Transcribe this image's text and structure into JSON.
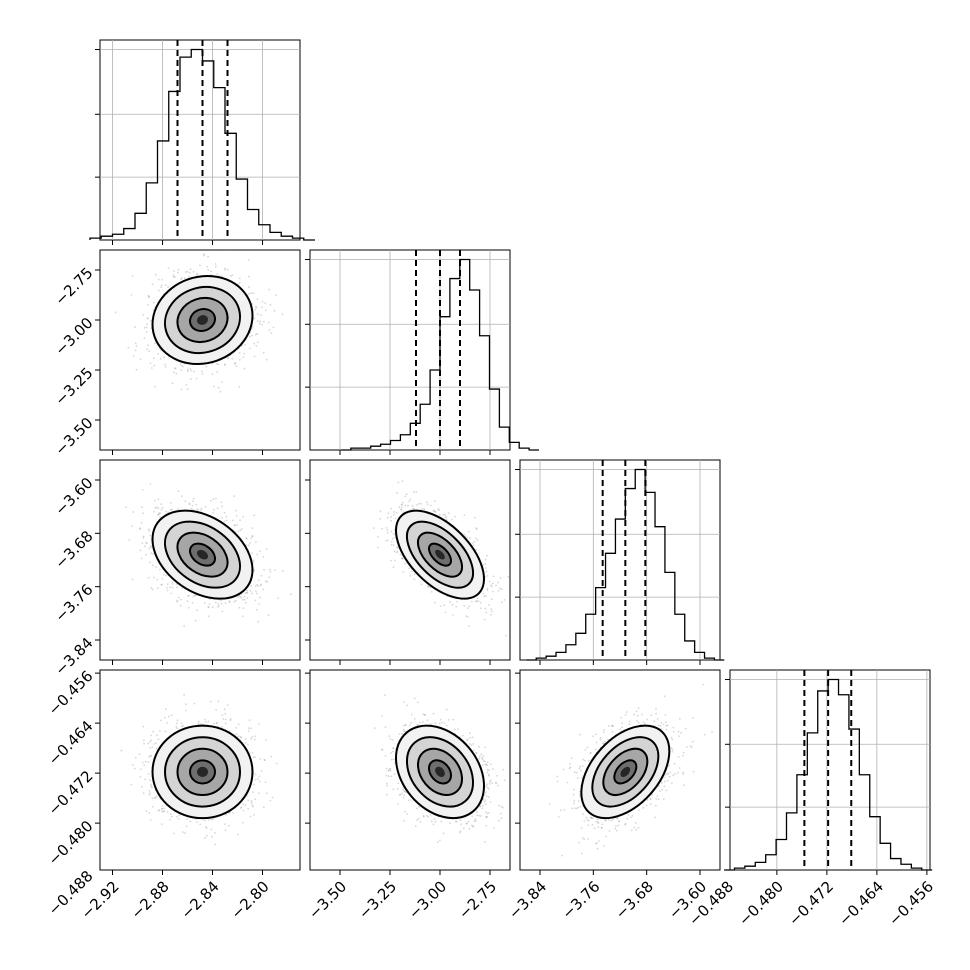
{
  "chart_data": {
    "type": "corner",
    "parameters": [
      {
        "ticks": [
          -2.92,
          -2.88,
          -2.84,
          -2.8
        ],
        "tick_labels": [
          "−2.92",
          "−2.88",
          "−2.84",
          "−2.80"
        ],
        "range": [
          -2.93,
          -2.77
        ],
        "median": -2.848,
        "quantiles": [
          -2.868,
          -2.828
        ],
        "std": 0.02
      },
      {
        "ticks": [
          -3.5,
          -3.25,
          -3.0,
          -2.75
        ],
        "tick_labels": [
          "−3.50",
          "−3.25",
          "−3.00",
          "−2.75"
        ],
        "range": [
          -3.65,
          -2.65
        ],
        "median": -3.0,
        "quantiles": [
          -3.12,
          -2.9
        ],
        "std": 0.11
      },
      {
        "ticks": [
          -3.84,
          -3.76,
          -3.68,
          -3.6
        ],
        "tick_labels": [
          "−3.84",
          "−3.76",
          "−3.68",
          "−3.60"
        ],
        "range": [
          -3.87,
          -3.57
        ],
        "median": -3.712,
        "quantiles": [
          -3.746,
          -3.682
        ],
        "std": 0.033
      },
      {
        "ticks": [
          -0.488,
          -0.48,
          -0.472,
          -0.464,
          -0.456
        ],
        "tick_labels": [
          "−0.488",
          "−0.480",
          "−0.472",
          "−0.464",
          "−0.456"
        ],
        "range": [
          -0.4875,
          -0.4555
        ],
        "median": -0.4718,
        "quantiles": [
          -0.4756,
          -0.4681
        ],
        "std": 0.0037
      }
    ],
    "correlations": [
      [
        1.0,
        0.1,
        -0.35,
        0.0
      ],
      [
        0.1,
        1.0,
        -0.55,
        -0.3
      ],
      [
        -0.35,
        -0.55,
        1.0,
        0.45
      ],
      [
        0.0,
        -0.3,
        0.45,
        1.0
      ]
    ],
    "marginal_histograms": [
      [
        1,
        2,
        3,
        6,
        14,
        30,
        52,
        78,
        96,
        100,
        94,
        80,
        56,
        32,
        16,
        8,
        4,
        2,
        1,
        0
      ],
      [
        0,
        1,
        1,
        2,
        3,
        5,
        8,
        14,
        24,
        42,
        70,
        90,
        100,
        84,
        60,
        32,
        12,
        4,
        1,
        0
      ],
      [
        0,
        1,
        2,
        4,
        8,
        14,
        24,
        38,
        56,
        74,
        90,
        100,
        88,
        70,
        46,
        24,
        10,
        4,
        1,
        0
      ],
      [
        0,
        1,
        2,
        4,
        8,
        16,
        30,
        50,
        72,
        94,
        100,
        92,
        74,
        50,
        28,
        14,
        6,
        3,
        1,
        0
      ]
    ],
    "grid": true
  }
}
